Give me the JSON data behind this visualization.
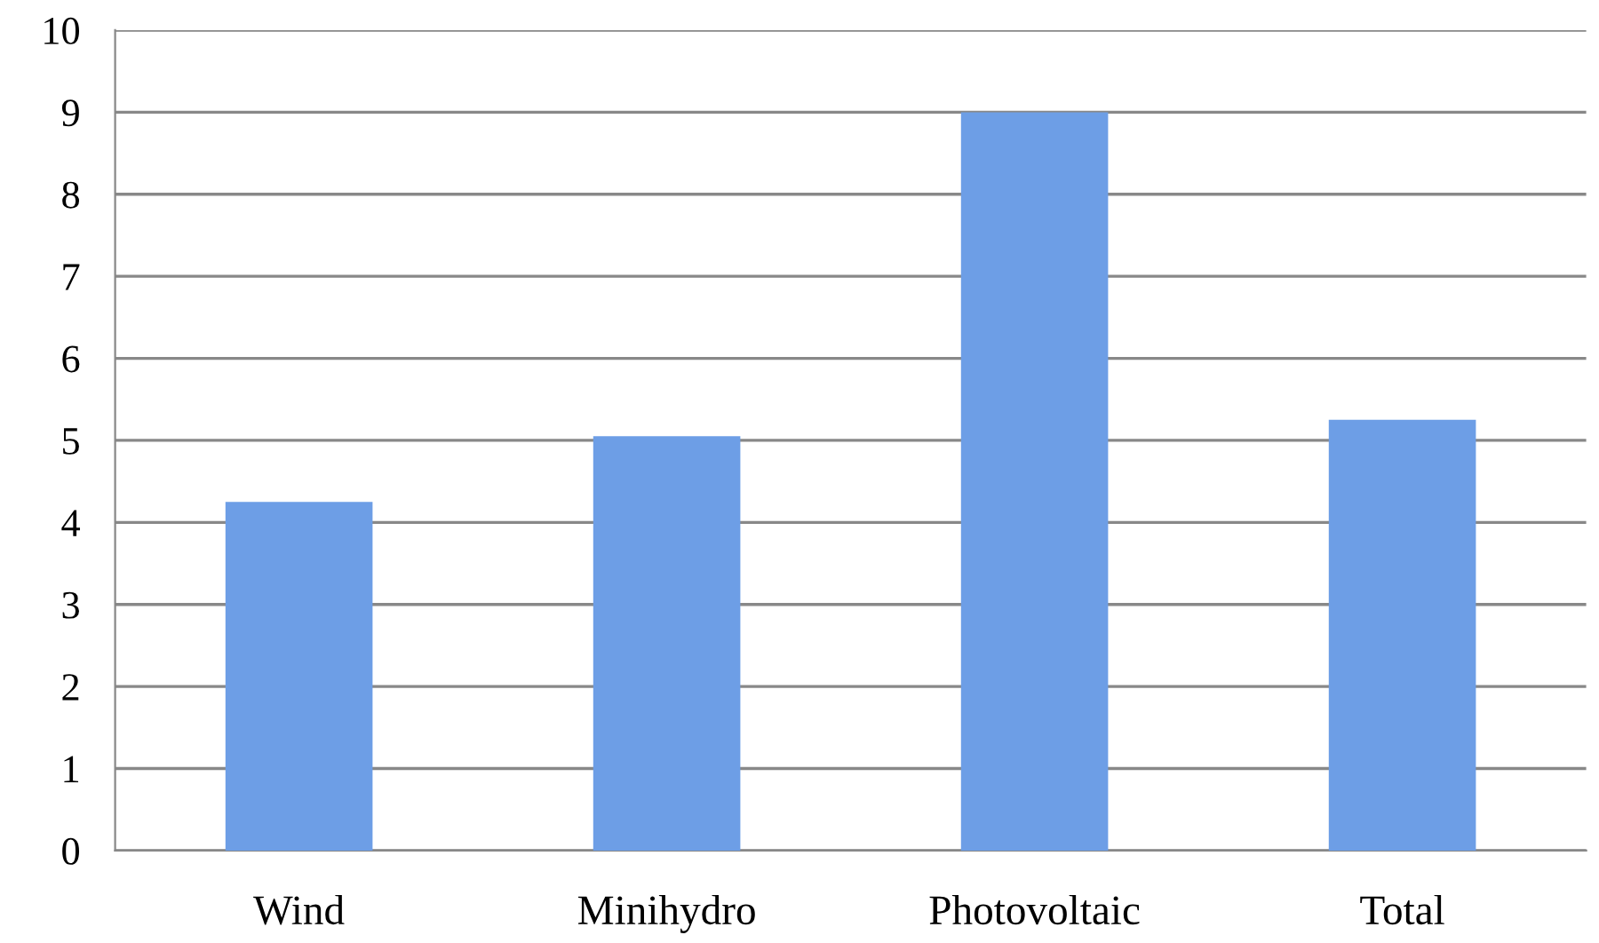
{
  "chart_data": {
    "type": "bar",
    "categories": [
      "Wind",
      "Minihydro",
      "Photovoltaic",
      "Total"
    ],
    "values": [
      4.25,
      5.05,
      9,
      5.25
    ],
    "color": "#6d9ee6",
    "ylim": [
      0,
      10
    ],
    "yticks": [
      0,
      1,
      2,
      3,
      4,
      5,
      6,
      7,
      8,
      9,
      10
    ],
    "grid": "y"
  }
}
